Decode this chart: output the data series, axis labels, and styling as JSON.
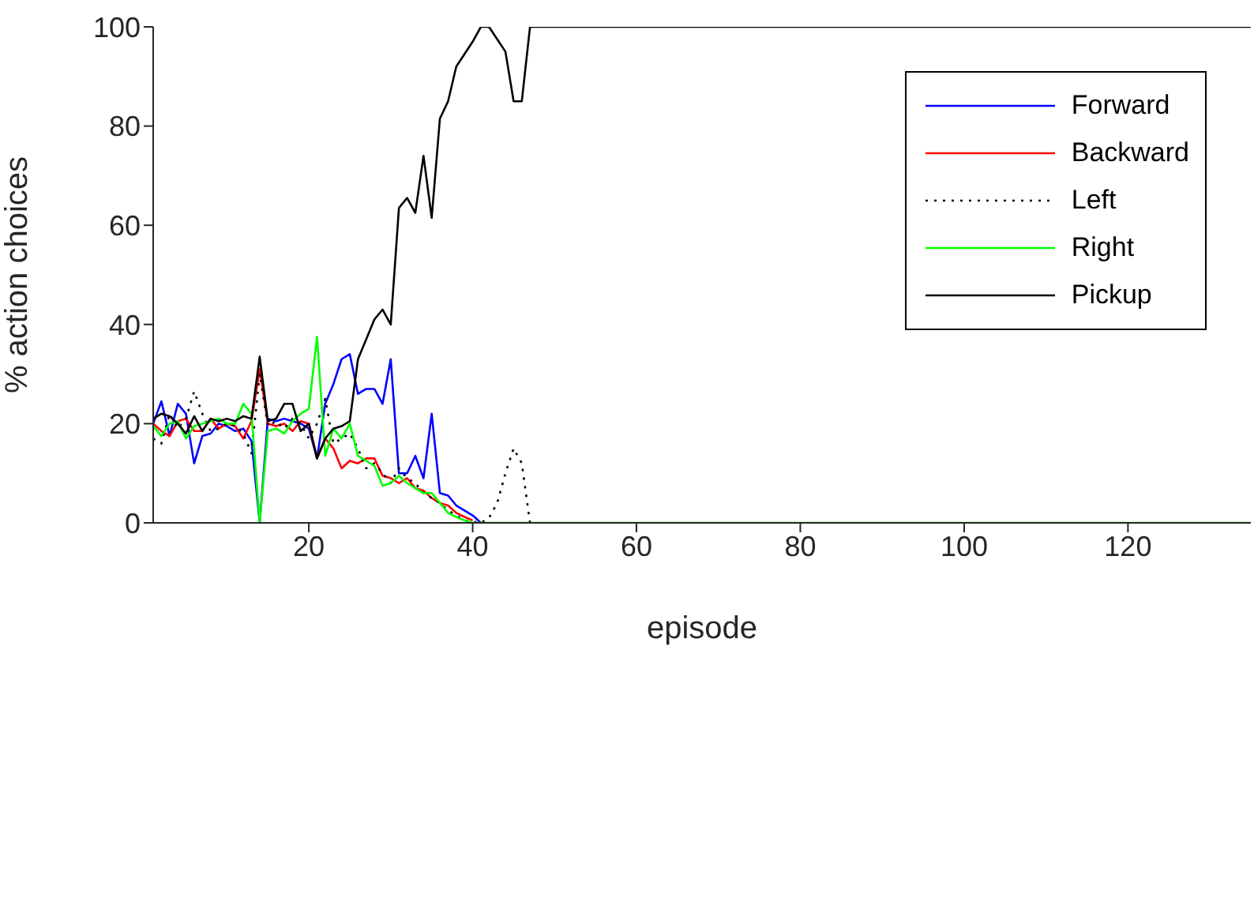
{
  "chart_data": {
    "type": "line",
    "xlabel": "episode",
    "ylabel": "% action choices",
    "series": [
      {
        "name": "Forward",
        "color": "#0000ff",
        "x": [
          1,
          2,
          3,
          4,
          5,
          6,
          7,
          8,
          9,
          10,
          11,
          12,
          13,
          14,
          15,
          16,
          17,
          18,
          19,
          20,
          21,
          22,
          23,
          24,
          25,
          26,
          27,
          28,
          29,
          30,
          31,
          32,
          33,
          34,
          35,
          36,
          37,
          38,
          39,
          40,
          41
        ],
        "values": [
          20,
          24.5,
          17.5,
          24,
          22,
          12,
          17.5,
          18,
          20,
          19.5,
          18.5,
          19,
          16.5,
          0,
          21,
          20.5,
          21,
          20.5,
          20,
          19,
          13,
          24,
          28,
          33,
          34,
          26,
          27,
          27,
          24,
          33,
          10,
          10,
          13.5,
          9,
          22,
          6,
          5.5,
          3.5,
          2.5,
          1.5,
          0
        ]
      },
      {
        "name": "Backward",
        "color": "#ff0000",
        "x": [
          1,
          2,
          3,
          4,
          5,
          6,
          7,
          8,
          9,
          10,
          11,
          12,
          13,
          14,
          15,
          16,
          17,
          18,
          19,
          20,
          21,
          22,
          23,
          24,
          25,
          26,
          27,
          28,
          29,
          30,
          31,
          32,
          33,
          34,
          35,
          36,
          37,
          38,
          39,
          40
        ],
        "values": [
          20,
          18.5,
          17.5,
          20.5,
          21,
          18.5,
          18.5,
          21,
          19,
          20,
          19.5,
          17,
          20.5,
          31,
          20,
          19.5,
          20,
          18.5,
          20.5,
          20,
          13,
          17,
          15,
          11,
          12.5,
          12,
          13,
          13,
          9.5,
          9,
          8,
          9,
          7,
          6.5,
          5,
          4,
          3.5,
          2,
          1.2,
          0.5
        ]
      },
      {
        "name": "Left",
        "color": "#000000",
        "line_style": "dotted",
        "x": [
          1,
          2,
          3,
          4,
          5,
          6,
          7,
          8,
          9,
          10,
          11,
          12,
          13,
          14,
          15,
          16,
          17,
          18,
          19,
          20,
          21,
          22,
          23,
          24,
          25,
          26,
          27,
          28,
          29,
          30,
          31,
          32,
          33,
          34,
          35,
          36,
          37,
          38,
          39,
          41,
          42,
          43,
          44,
          45,
          46,
          47
        ],
        "values": [
          17,
          16,
          22,
          19,
          21,
          26.5,
          22,
          18.5,
          19,
          20,
          19.5,
          18,
          14,
          30,
          19.5,
          20.5,
          19,
          21,
          20,
          17,
          20,
          25,
          16,
          17,
          18,
          15,
          11,
          12,
          10,
          8,
          11,
          9,
          8,
          6,
          5,
          4,
          2.5,
          1.5,
          0.5,
          0,
          1,
          4,
          10,
          15,
          12,
          0
        ]
      },
      {
        "name": "Right",
        "color": "#00ff00",
        "x": [
          1,
          2,
          3,
          4,
          5,
          6,
          7,
          8,
          9,
          10,
          11,
          12,
          13,
          14,
          15,
          16,
          17,
          18,
          19,
          20,
          21,
          22,
          23,
          24,
          25,
          26,
          27,
          28,
          29,
          30,
          31,
          32,
          33,
          34,
          35,
          36,
          37,
          38,
          39,
          40,
          135
        ],
        "values": [
          19.5,
          17.5,
          20,
          20.5,
          17,
          19.5,
          20,
          20.5,
          21,
          20,
          20,
          24,
          22,
          0,
          18.5,
          19,
          18,
          20.5,
          22,
          23,
          37.5,
          13.5,
          19,
          17,
          20,
          13.5,
          12.5,
          11.5,
          7.5,
          8,
          9.5,
          8,
          7,
          6,
          6,
          4,
          2,
          1.2,
          0.5,
          0,
          0
        ]
      },
      {
        "name": "Pickup",
        "color": "#000000",
        "x": [
          1,
          2,
          3,
          4,
          5,
          6,
          7,
          8,
          9,
          10,
          11,
          12,
          13,
          14,
          15,
          16,
          17,
          18,
          19,
          20,
          21,
          22,
          23,
          24,
          25,
          26,
          27,
          28,
          29,
          30,
          31,
          32,
          33,
          34,
          35,
          36,
          37,
          38,
          39,
          40,
          41,
          42,
          43,
          44,
          45,
          46,
          47,
          135
        ],
        "values": [
          21,
          22,
          21.5,
          20,
          18,
          21.5,
          18.5,
          21,
          20.5,
          21,
          20.5,
          21.5,
          21,
          33.5,
          20.5,
          21,
          24,
          24,
          18.5,
          20,
          13,
          17,
          19,
          19.5,
          20.5,
          33,
          37,
          41,
          43,
          40,
          63.5,
          65.5,
          62.5,
          74,
          61.5,
          81.5,
          85,
          92,
          94.5,
          97,
          100,
          100,
          97.5,
          95,
          85,
          85,
          100,
          100
        ]
      }
    ],
    "xlim": [
      1,
      135
    ],
    "xticks": [
      20,
      40,
      60,
      80,
      100,
      120
    ],
    "ylim": [
      0,
      100
    ],
    "yticks": [
      0,
      20,
      40,
      60,
      80,
      100
    ],
    "grid": false,
    "legend": "top right",
    "marker": "none",
    "line_style": "solid"
  }
}
